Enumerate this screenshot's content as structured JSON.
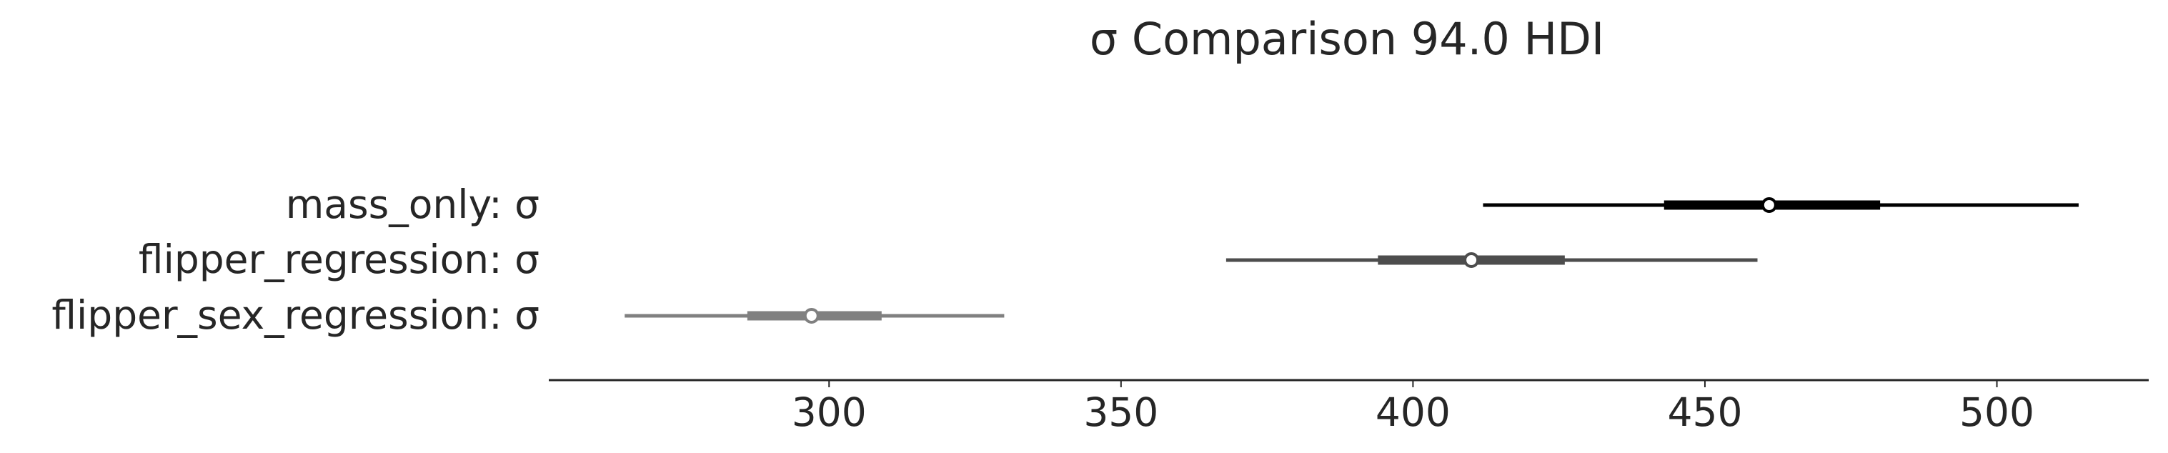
{
  "chart_data": {
    "type": "forest",
    "title": "σ Comparison 94.0 HDI",
    "xlabel": "",
    "ylabel": "",
    "xlim": [
      252,
      526
    ],
    "xticks": [
      300,
      350,
      400,
      450,
      500
    ],
    "xtick_labels": [
      "300",
      "350",
      "400",
      "450",
      "500"
    ],
    "grid": false,
    "series": [
      {
        "name": "mass_only: σ",
        "color": "#000000",
        "hdi_94": [
          412,
          514
        ],
        "iqr": [
          443,
          480
        ],
        "point": 461
      },
      {
        "name": "flipper_regression: σ",
        "color": "#4d4d4d",
        "hdi_94": [
          368,
          459
        ],
        "iqr": [
          394,
          426
        ],
        "point": 410
      },
      {
        "name": "flipper_sex_regression: σ",
        "color": "#808080",
        "hdi_94": [
          265,
          330
        ],
        "iqr": [
          286,
          309
        ],
        "point": 297
      }
    ]
  }
}
